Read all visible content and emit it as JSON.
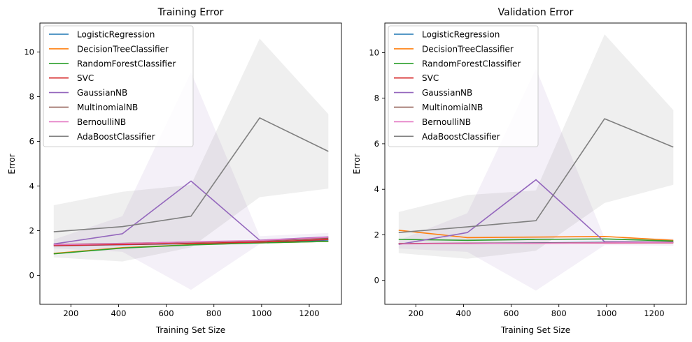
{
  "figure": {
    "background": "#ffffff"
  },
  "chart_data": [
    {
      "type": "line",
      "title": "Training Error",
      "xlabel": "Training Set Size",
      "ylabel": "Error",
      "xlim": [
        70,
        1335
      ],
      "ylim": [
        -1.3,
        11.3
      ],
      "xticks": [
        200,
        400,
        600,
        800,
        1000,
        1200
      ],
      "yticks": [
        0,
        2,
        4,
        6,
        8,
        10
      ],
      "grid": false,
      "legend": "top-left",
      "x": [
        128,
        416,
        704,
        992,
        1280
      ],
      "series": [
        {
          "name": "LogisticRegression",
          "color": "#1f77b4",
          "values": [
            1.32,
            1.37,
            1.42,
            1.48,
            1.58
          ]
        },
        {
          "name": "DecisionTreeClassifier",
          "color": "#ff7f0e",
          "values": [
            0.98,
            1.24,
            1.37,
            1.45,
            1.52
          ]
        },
        {
          "name": "RandomForestClassifier",
          "color": "#2ca02c",
          "values": [
            0.96,
            1.22,
            1.36,
            1.45,
            1.52
          ]
        },
        {
          "name": "SVC",
          "color": "#d62728",
          "values": [
            1.33,
            1.38,
            1.43,
            1.49,
            1.6
          ]
        },
        {
          "name": "GaussianNB",
          "color": "#9467bd",
          "values": [
            1.4,
            1.86,
            4.22,
            1.57,
            1.72
          ],
          "band_lower": [
            1.2,
            1.05,
            -0.65,
            1.4,
            1.55
          ],
          "band_upper": [
            1.6,
            2.65,
            9.1,
            1.75,
            1.9
          ]
        },
        {
          "name": "MultinomialNB",
          "color": "#8c564b",
          "values": [
            1.38,
            1.43,
            1.49,
            1.54,
            1.66
          ]
        },
        {
          "name": "BernoulliNB",
          "color": "#e377c2",
          "values": [
            1.37,
            1.42,
            1.5,
            1.56,
            1.7
          ]
        },
        {
          "name": "AdaBoostClassifier",
          "color": "#7f7f7f",
          "values": [
            1.95,
            2.18,
            2.65,
            7.05,
            5.55
          ],
          "band_lower": [
            0.8,
            0.62,
            1.25,
            3.5,
            3.88
          ],
          "band_upper": [
            3.14,
            3.74,
            4.05,
            10.6,
            7.22
          ]
        }
      ]
    },
    {
      "type": "line",
      "title": "Validation Error",
      "xlabel": "Training Set Size",
      "ylabel": "Error",
      "xlim": [
        70,
        1335
      ],
      "ylim": [
        -1.05,
        11.3
      ],
      "xticks": [
        200,
        400,
        600,
        800,
        1000,
        1200
      ],
      "yticks": [
        0,
        2,
        4,
        6,
        8,
        10
      ],
      "grid": false,
      "legend": "top-left",
      "x": [
        128,
        416,
        704,
        992,
        1280
      ],
      "series": [
        {
          "name": "LogisticRegression",
          "color": "#1f77b4",
          "values": [
            1.62,
            1.63,
            1.65,
            1.67,
            1.68
          ]
        },
        {
          "name": "DecisionTreeClassifier",
          "color": "#ff7f0e",
          "values": [
            2.2,
            1.88,
            1.9,
            1.93,
            1.76
          ]
        },
        {
          "name": "RandomForestClassifier",
          "color": "#2ca02c",
          "values": [
            1.8,
            1.76,
            1.8,
            1.82,
            1.73
          ]
        },
        {
          "name": "SVC",
          "color": "#d62728",
          "values": [
            1.62,
            1.63,
            1.63,
            1.64,
            1.65
          ]
        },
        {
          "name": "GaussianNB",
          "color": "#9467bd",
          "values": [
            1.58,
            2.1,
            4.42,
            1.7,
            1.68
          ],
          "band_lower": [
            1.4,
            1.25,
            -0.45,
            1.55,
            1.52
          ],
          "band_upper": [
            1.76,
            2.95,
            9.3,
            1.85,
            1.84
          ]
        },
        {
          "name": "MultinomialNB",
          "color": "#8c564b",
          "values": [
            1.61,
            1.62,
            1.64,
            1.66,
            1.67
          ]
        },
        {
          "name": "BernoulliNB",
          "color": "#e377c2",
          "values": [
            1.6,
            1.62,
            1.63,
            1.65,
            1.66
          ]
        },
        {
          "name": "AdaBoostClassifier",
          "color": "#7f7f7f",
          "values": [
            2.1,
            2.35,
            2.62,
            7.1,
            5.85
          ],
          "band_lower": [
            1.2,
            0.95,
            1.3,
            3.4,
            4.2
          ],
          "band_upper": [
            3.0,
            3.75,
            3.95,
            10.8,
            7.48
          ]
        }
      ]
    }
  ]
}
